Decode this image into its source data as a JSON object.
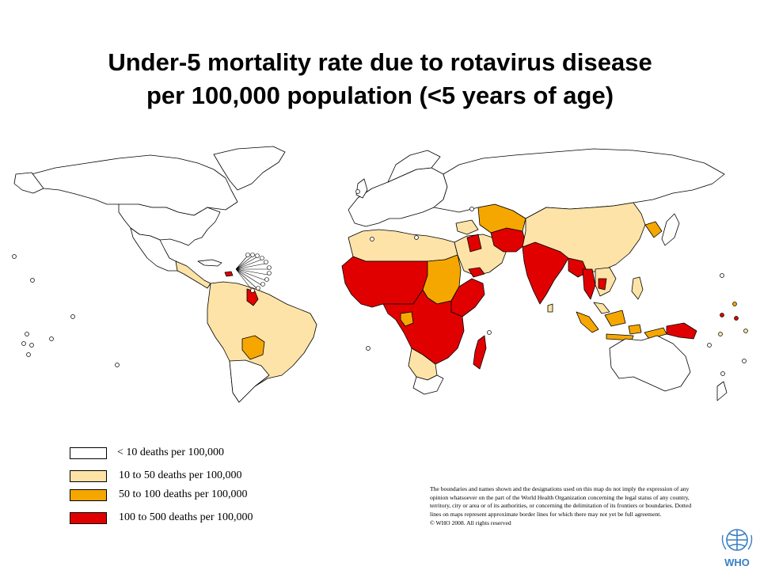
{
  "title": {
    "line1": "Under-5 mortality rate due to rotavirus disease",
    "line2": "per 100,000 population (<5 years of age)"
  },
  "legend": [
    {
      "label": "< 10 deaths per 100,000",
      "color": "#ffffff"
    },
    {
      "label": "10 to 50 deaths per 100,000",
      "color": "#fde3a7"
    },
    {
      "label": "50 to 100 deaths per 100,000",
      "color": "#f5a700"
    },
    {
      "label": "100 to 500 deaths per 100,000",
      "color": "#e00000"
    }
  ],
  "disclaimer": "The boundaries and names shown and the designations used on this map do not imply the expression of any opinion whatsoever on the part of the World Health Organization concerning the legal status of any country, territory, city or area or of its authorities, or concerning the delimitation of its frontiers or boundaries. Dotted lines on maps represent approximate border lines for which there may not yet be full agreement.",
  "copyright": "© WHO 2008. All rights reserved",
  "logo": {
    "text": "WHO",
    "color": "#3a7fc4"
  },
  "map_colors": {
    "none": "#ffffff",
    "low": "#fde3a7",
    "mid": "#f5a700",
    "high": "#e00000",
    "outline": "#000000"
  }
}
